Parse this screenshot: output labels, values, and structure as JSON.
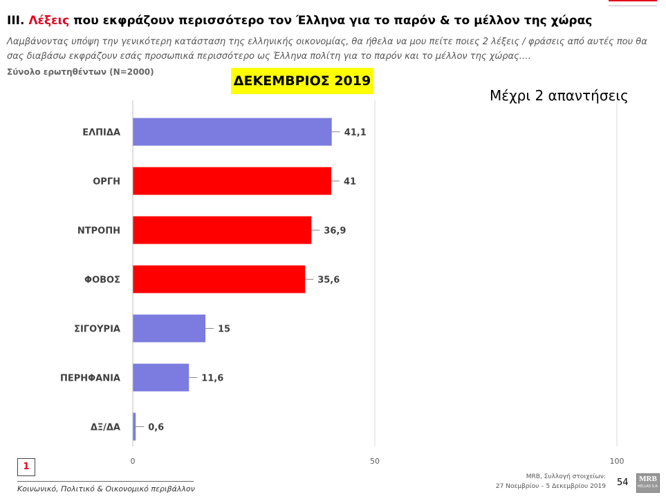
{
  "title": {
    "prefix": "III. ",
    "highlight": "Λέξεις",
    "rest": " που εκφράζουν περισσότερο τον Έλληνα για το παρόν & το μέλλον της χώρας"
  },
  "question_line1": "Λαμβάνοντας υπόψη την γενικότερη κατάσταση της ελληνικής οικονομίας, θα ήθελα να μου πείτε ποιες 2  λέξεις / φράσεις από αυτές που θα",
  "question_line2": "σας διαβάσω εκφράζουν εσάς προσωπικά περισσότερο ως Έλληνα πολίτη για το παρόν και το μέλλον της χώρας….",
  "base": "Σύνολο ερωτηθέντων (N=2000)",
  "period": "ΔΕΚΕΜΒΡΙΟΣ 2019",
  "note": "Μέχρι 2 απαντήσεις",
  "chart_data": {
    "type": "bar",
    "orientation": "horizontal",
    "categories": [
      "ΕΛΠΙΔΑ",
      "ΟΡΓΗ",
      "ΝΤΡΟΠΗ",
      "ΦΟΒΟΣ",
      "ΣΙΓΟΥΡΙΑ",
      "ΠΕΡΗΦΑΝΙΑ",
      "ΔΞ/ΔΑ"
    ],
    "values": [
      41.1,
      41,
      36.9,
      35.6,
      15,
      11.6,
      0.6
    ],
    "value_labels": [
      "41,1",
      "41",
      "36,9",
      "35,6",
      "15",
      "11,6",
      "0,6"
    ],
    "colors": [
      "#7b7be0",
      "#ff0000",
      "#ff0000",
      "#ff0000",
      "#7b7be0",
      "#7b7be0",
      "#7b7be0"
    ],
    "xlim": [
      0,
      100
    ],
    "xticks": [
      0,
      50,
      100
    ],
    "grid": true
  },
  "footer": {
    "page_box": "1",
    "left": "Κοινωνικό, Πολιτικό & Οικονομικό περιβάλλον",
    "source_line1": "MRB, Συλλογή στοιχείων:",
    "source_line2": "27 Νοεμβρίου – 5 Δεκεμβρίου 2019",
    "page_number": "54",
    "logo_text": "MRB",
    "logo_sub": "HELLAS S.A."
  },
  "colors": {
    "accent": "#e3001b",
    "highlight": "#ffff00"
  }
}
